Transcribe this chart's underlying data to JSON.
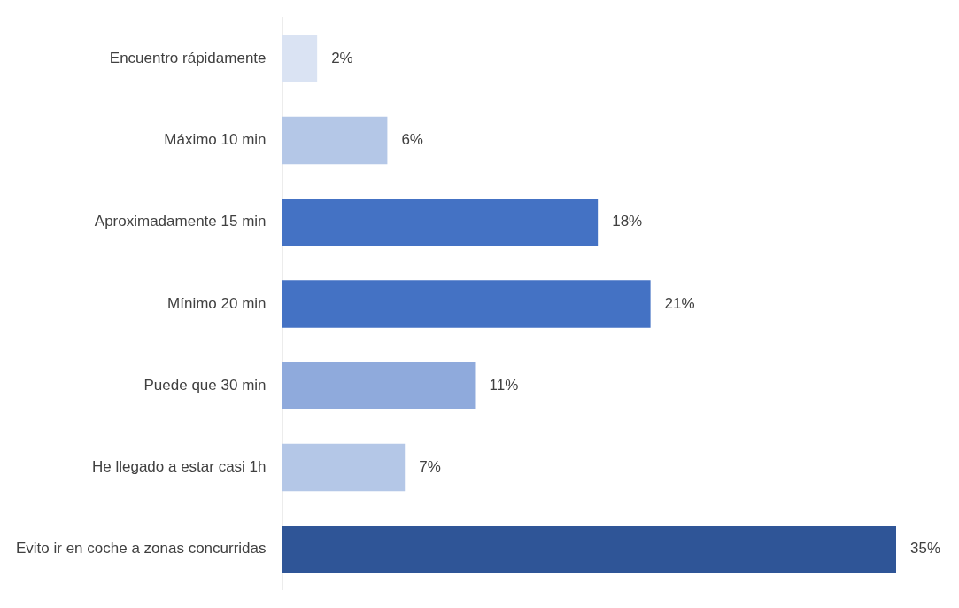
{
  "chart_data": {
    "type": "bar",
    "orientation": "horizontal",
    "categories": [
      "Encuentro rápidamente",
      "Máximo 10 min",
      "Aproximadamente 15 min",
      "Mínimo 20 min",
      "Puede que 30 min",
      "He llegado a estar casi 1h",
      "Evito ir en coche a zonas concurridas"
    ],
    "values": [
      2,
      6,
      18,
      21,
      11,
      7,
      35
    ],
    "colors": [
      "#dae3f3",
      "#b4c7e7",
      "#4472c4",
      "#4472c4",
      "#8faadc",
      "#b4c7e7",
      "#2f5597"
    ],
    "value_labels": [
      "2%",
      "6%",
      "18%",
      "21%",
      "11%",
      "7%",
      "35%"
    ],
    "legend": false
  }
}
